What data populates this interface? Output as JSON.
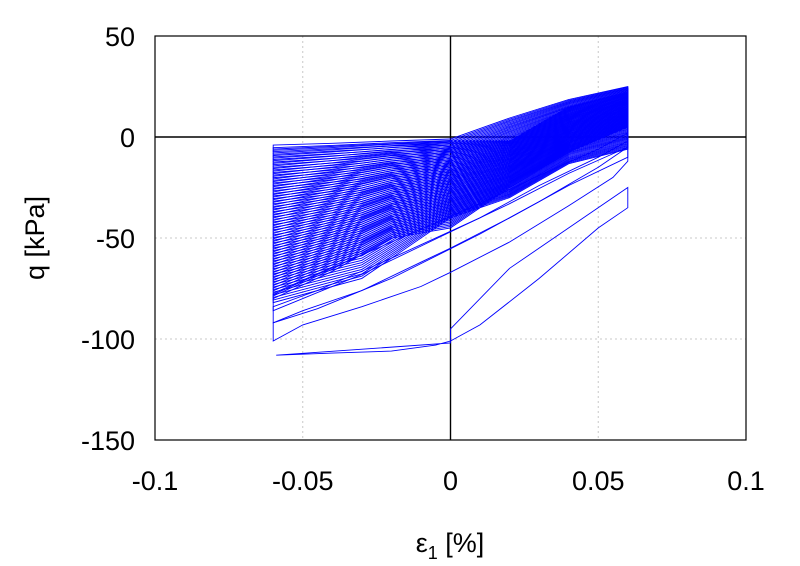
{
  "chart_data": {
    "type": "line",
    "xlabel": "ε",
    "xlabel_sub": "1",
    "xlabel_unit": " [%]",
    "ylabel": "q [kPa]",
    "xlim": [
      -0.1,
      0.1
    ],
    "ylim": [
      -150,
      50
    ],
    "x_ticks": [
      -0.1,
      -0.05,
      0,
      0.05,
      0.1
    ],
    "x_tick_labels": [
      "-0.1",
      "-0.05",
      "0",
      "0.05",
      "0.1"
    ],
    "y_ticks": [
      -150,
      -100,
      -50,
      0,
      50
    ],
    "y_tick_labels": [
      "-150",
      "-100",
      "-50",
      "0",
      "50"
    ],
    "grid": true,
    "series_color": "#0000ff",
    "series": [
      {
        "description_shape": "cyclic stress-strain loops",
        "loops": [
          {
            "points": [
              [
                -0.059,
                -108
              ],
              [
                -0.04,
                -107
              ],
              [
                -0.02,
                -106
              ],
              [
                -0.005,
                -103
              ],
              [
                0.0,
                -101
              ],
              [
                0.01,
                -93
              ],
              [
                0.03,
                -70
              ],
              [
                0.05,
                -45
              ],
              [
                0.06,
                -35
              ],
              [
                0.06,
                -25
              ],
              [
                0.045,
                -40
              ],
              [
                0.02,
                -65
              ],
              [
                0.0,
                -95
              ],
              [
                0.0,
                -102
              ]
            ]
          },
          {
            "points": [
              [
                -0.06,
                -101
              ],
              [
                -0.05,
                -93
              ],
              [
                -0.03,
                -84
              ],
              [
                -0.01,
                -74
              ],
              [
                0.0,
                -67
              ],
              [
                0.02,
                -52
              ],
              [
                0.04,
                -34
              ],
              [
                0.055,
                -20
              ],
              [
                0.06,
                -12
              ],
              [
                0.06,
                -5
              ],
              [
                0.05,
                -15
              ],
              [
                0.03,
                -32
              ],
              [
                0.01,
                -48
              ],
              [
                -0.02,
                -70
              ],
              [
                -0.045,
                -85
              ],
              [
                -0.06,
                -92
              ]
            ]
          },
          {
            "points": [
              [
                -0.06,
                -92
              ],
              [
                -0.05,
                -86
              ],
              [
                -0.03,
                -76
              ],
              [
                -0.01,
                -62
              ],
              [
                0.0,
                -55
              ],
              [
                0.02,
                -40
              ],
              [
                0.04,
                -24
              ],
              [
                0.06,
                -10
              ],
              [
                0.06,
                -2
              ],
              [
                0.05,
                -10
              ],
              [
                0.03,
                -24
              ],
              [
                0.01,
                -40
              ],
              [
                -0.02,
                -60
              ],
              [
                -0.045,
                -76
              ],
              [
                -0.06,
                -84
              ]
            ]
          },
          {
            "points": [
              [
                -0.06,
                -86
              ],
              [
                -0.05,
                -80
              ],
              [
                -0.03,
                -68
              ],
              [
                -0.01,
                -54
              ],
              [
                0.0,
                -47
              ],
              [
                0.02,
                -33
              ],
              [
                0.04,
                -18
              ],
              [
                0.06,
                -5
              ],
              [
                0.06,
                2
              ],
              [
                0.05,
                -6
              ],
              [
                0.03,
                -19
              ],
              [
                0.01,
                -33
              ],
              [
                -0.02,
                -52
              ],
              [
                -0.045,
                -68
              ],
              [
                -0.06,
                -78
              ]
            ]
          }
        ]
      }
    ]
  }
}
